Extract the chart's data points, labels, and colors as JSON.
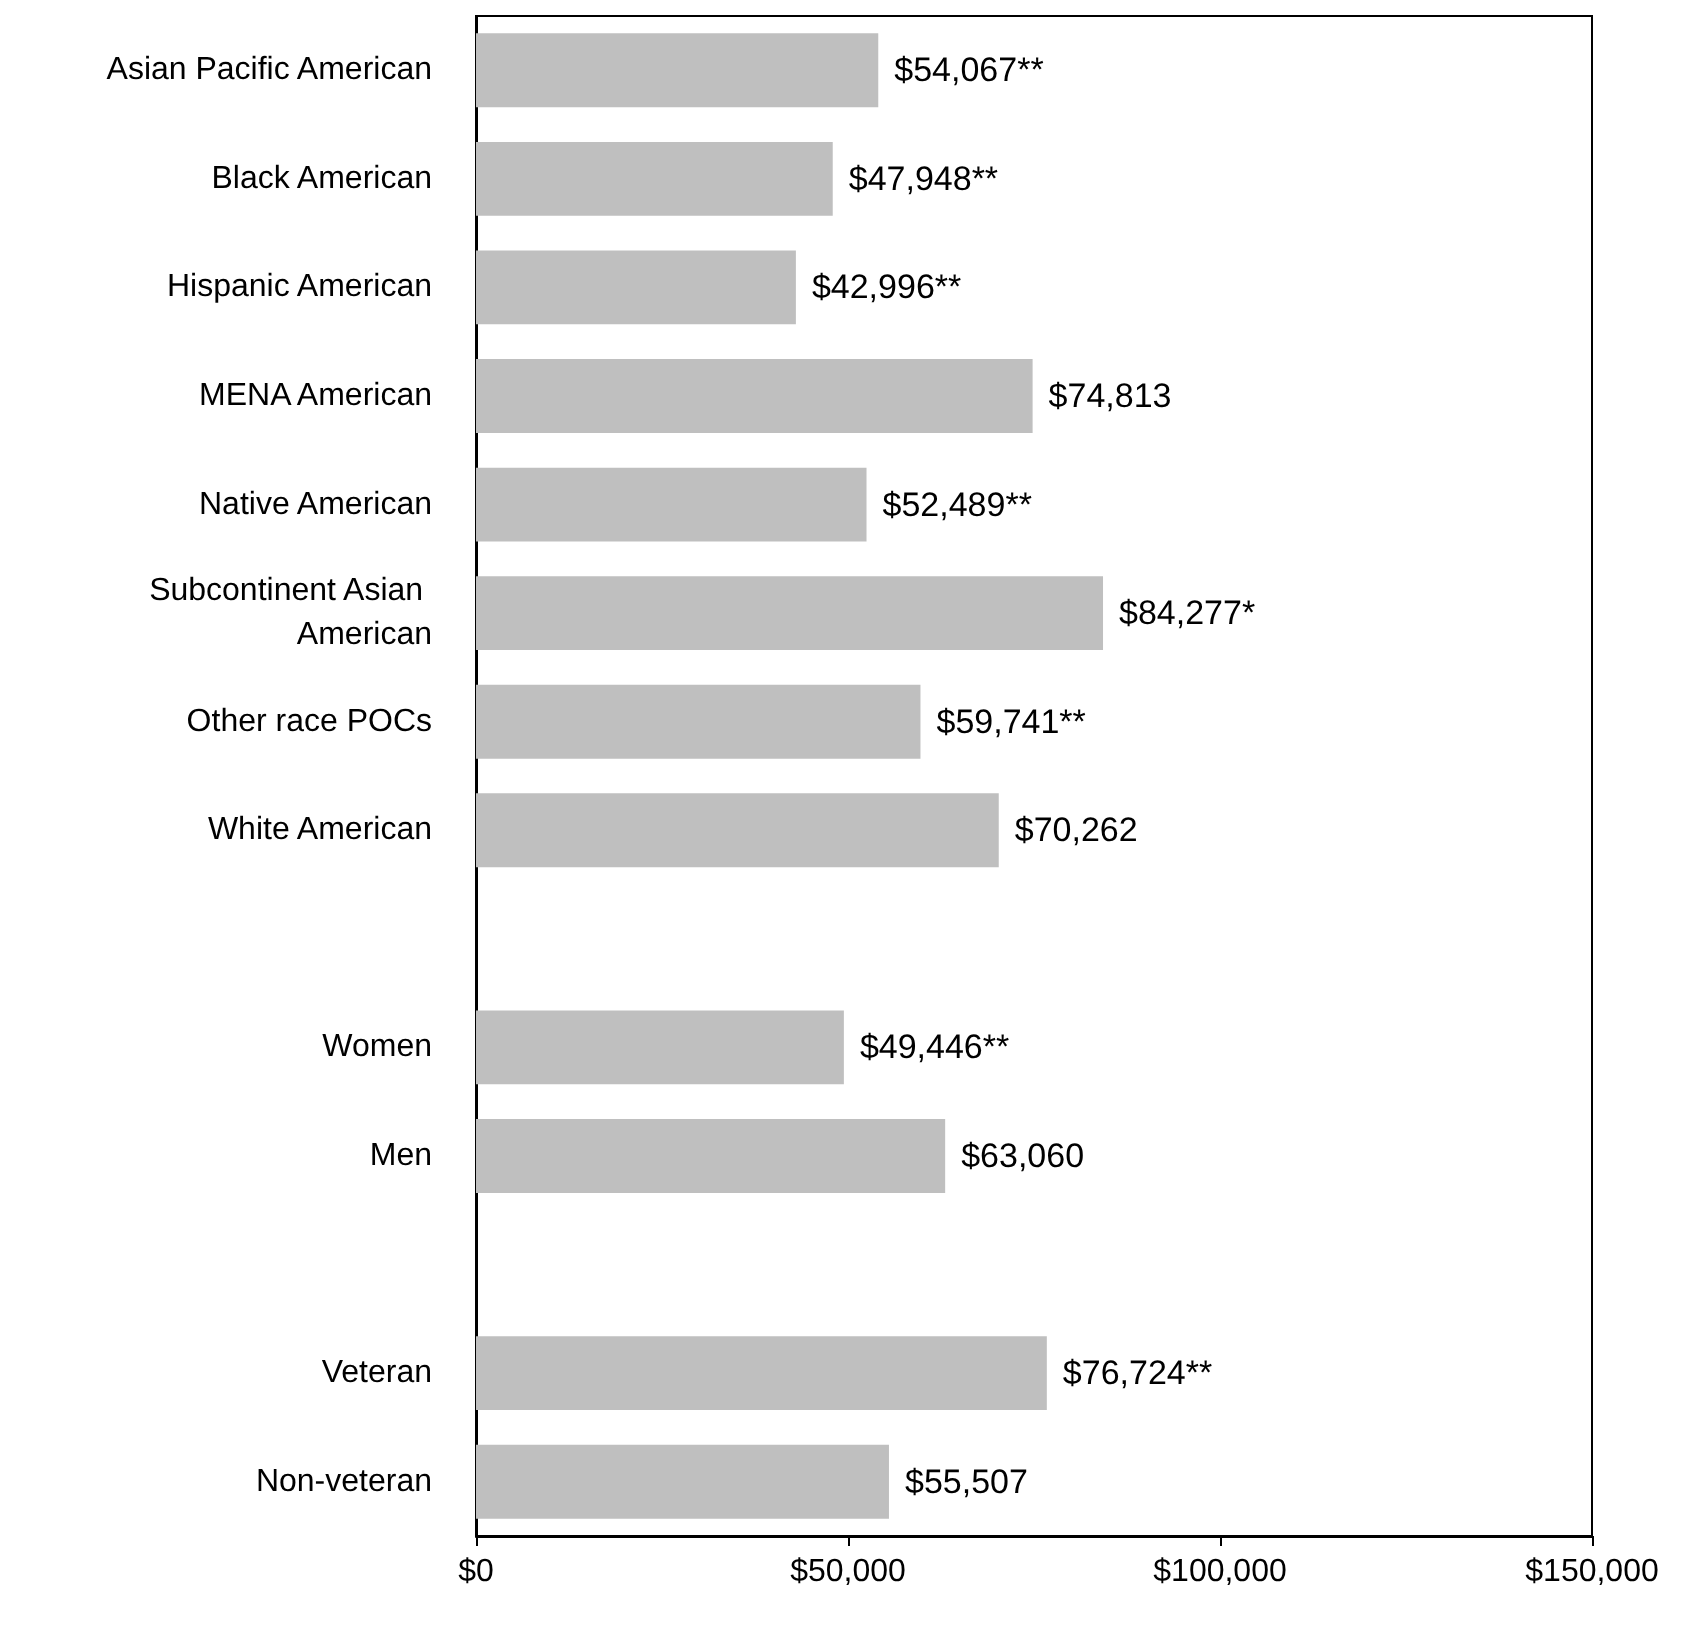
{
  "chart_data": {
    "type": "bar",
    "orientation": "horizontal",
    "categories": [
      "Asian Pacific American",
      "Black American",
      "Hispanic American",
      "MENA American",
      "Native American",
      "Subcontinent Asian American",
      "Other race POCs",
      "White American",
      null,
      "Women",
      "Men",
      null,
      "Veteran",
      "Non-veteran"
    ],
    "values": [
      54067,
      47948,
      42996,
      74813,
      52489,
      84277,
      59741,
      70262,
      null,
      49446,
      63060,
      null,
      76724,
      55507
    ],
    "value_labels": [
      "$54,067**",
      "$47,948**",
      "$42,996**",
      "$74,813",
      "$52,489**",
      "$84,277*",
      "$59,741**",
      "$70,262",
      null,
      "$49,446**",
      "$63,060",
      null,
      "$76,724**",
      "$55,507"
    ],
    "color": "#bfbfbf",
    "xlim": [
      0,
      150000
    ],
    "xticks": [
      {
        "value": 0,
        "label": "$0"
      },
      {
        "value": 50000,
        "label": "$50,000"
      },
      {
        "value": 100000,
        "label": "$100,000"
      },
      {
        "value": 150000,
        "label": "$150,000"
      }
    ],
    "grid": false
  }
}
